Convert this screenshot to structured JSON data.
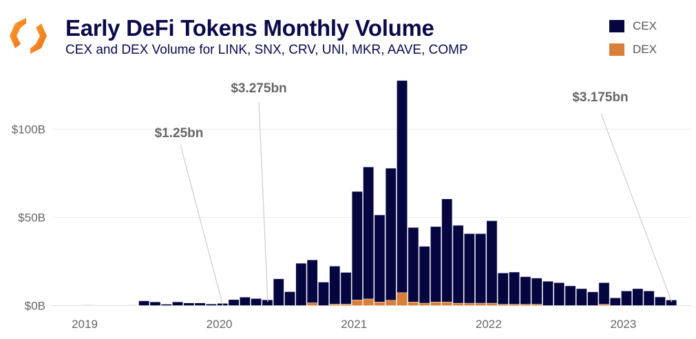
{
  "header": {
    "title": "Early DeFi Tokens Monthly Volume",
    "subtitle": "CEX and DEX Volume for LINK, SNX, CRV, UNI, MKR, AAVE, COMP",
    "logo_icon": "orange-hexagon-brackets-logo"
  },
  "colors": {
    "CEX": "#05053f",
    "DEX": "#d87f3a",
    "grid": "#ececec",
    "annotation": "#666666"
  },
  "chart_data": {
    "type": "bar",
    "stacked": true,
    "title": "Early DeFi Tokens Monthly Volume",
    "subtitle": "CEX and DEX Volume for LINK, SNX, CRV, UNI, MKR, AAVE, COMP",
    "xlabel": "",
    "ylabel": "",
    "x_start": "2019-01",
    "x_end": "2023-05",
    "x_ticks": [
      "2019",
      "2020",
      "2021",
      "2022",
      "2023"
    ],
    "y_ticks": [
      "$0B",
      "$50B",
      "$100B"
    ],
    "y_tick_values": [
      0,
      50,
      100
    ],
    "ylim": [
      0,
      130
    ],
    "grid": true,
    "legend_placement": "top-right",
    "series": [
      {
        "name": "CEX",
        "values": [
          0.3,
          null,
          null,
          null,
          0.3,
          2.7,
          2.1,
          0.8,
          2.1,
          1.5,
          1.5,
          0.9,
          1.25,
          3.4,
          4.8,
          4.0,
          3.275,
          15.2,
          7.9,
          24.0,
          24.4,
          13.3,
          21.6,
          18.0,
          61.5,
          74.9,
          49.4,
          74.9,
          120.3,
          42.3,
          32.3,
          42.8,
          58.5,
          44.2,
          39.5,
          39.5,
          46.8,
          17.8,
          18.3,
          15.7,
          14.9,
          13.8,
          13.0,
          11.2,
          9.6,
          7.8,
          12.3,
          4.4,
          8.3,
          9.6,
          8.3,
          4.9,
          3.175
        ]
      },
      {
        "name": "DEX",
        "values": [
          0,
          0,
          0,
          0,
          0,
          0,
          0,
          0,
          0,
          0,
          0,
          0,
          0,
          0,
          0,
          0,
          0,
          0,
          0,
          0,
          1.5,
          0,
          0.8,
          0.8,
          3.2,
          3.7,
          2.0,
          3.0,
          7.3,
          2.0,
          1.3,
          2.0,
          2.0,
          1.3,
          1.3,
          1.3,
          1.3,
          0.7,
          0.7,
          0.7,
          0.7,
          0,
          0,
          0,
          0,
          0,
          0.7,
          0,
          0,
          0,
          0,
          0,
          0
        ]
      }
    ],
    "annotations": [
      {
        "text": "$1.25bn",
        "month": "2020-01"
      },
      {
        "text": "$3.275bn",
        "month": "2020-05"
      },
      {
        "text": "$3.175bn",
        "month": "2023-05"
      }
    ]
  }
}
